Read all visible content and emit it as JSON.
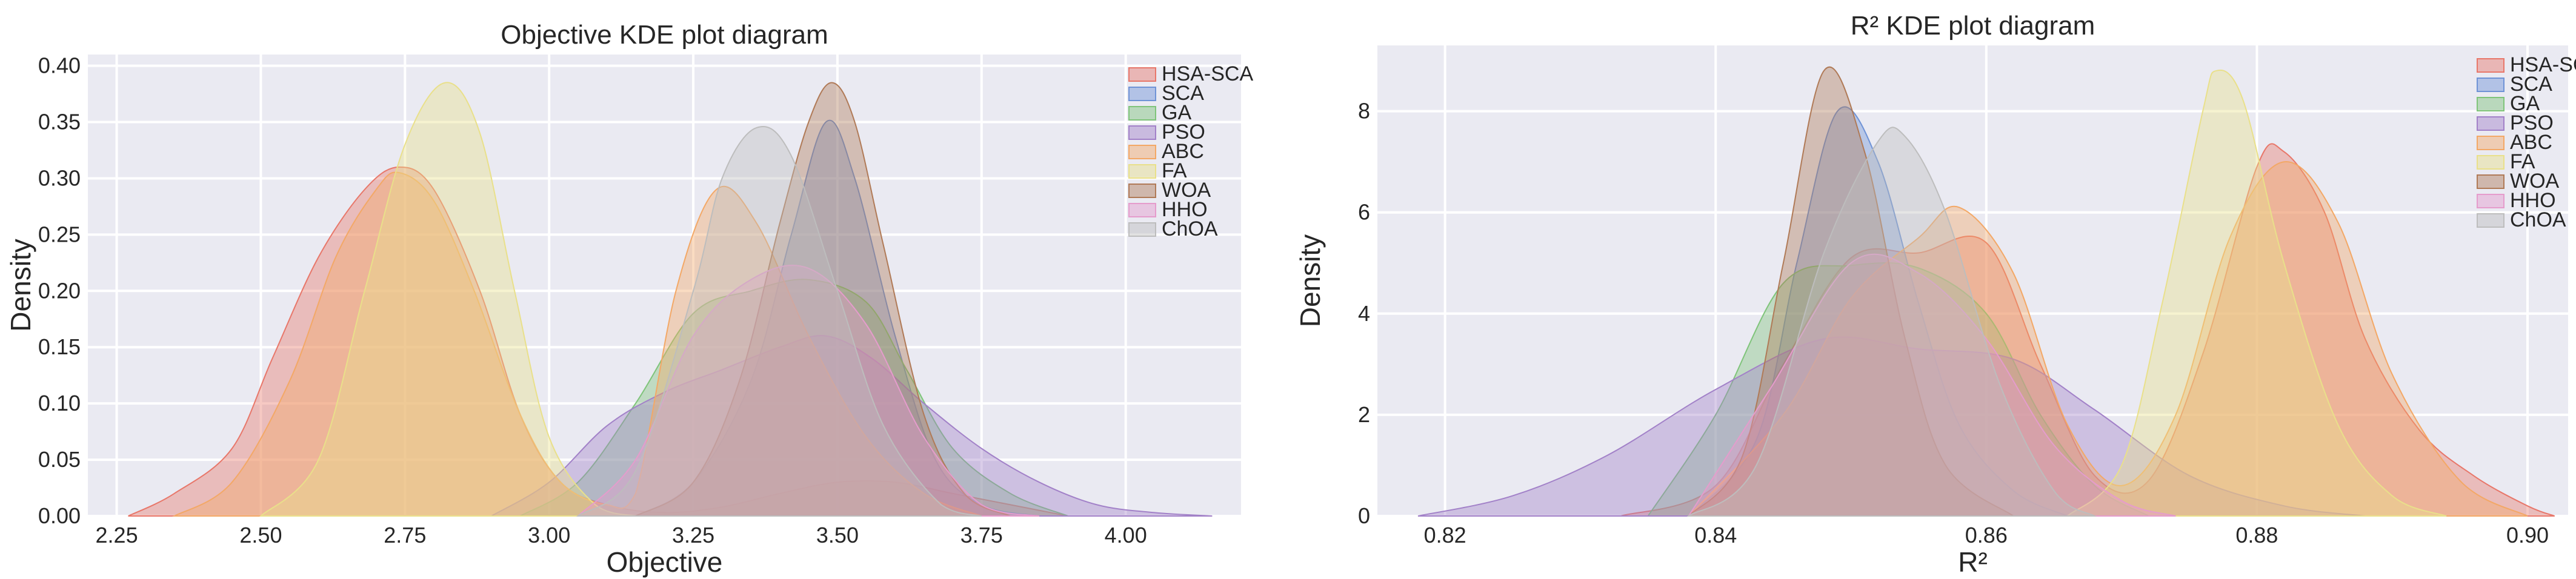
{
  "chart_data": [
    {
      "type": "area",
      "kind": "kde",
      "title": "Objective KDE plot diagram",
      "xlabel": "Objective",
      "ylabel": "Density",
      "xlim": [
        2.2,
        4.2
      ],
      "ylim": [
        0,
        0.41
      ],
      "xticks": [
        "2.25",
        "2.50",
        "2.75",
        "3.00",
        "3.25",
        "3.50",
        "3.75",
        "4.00"
      ],
      "xtick_values": [
        2.25,
        2.5,
        2.75,
        3.0,
        3.25,
        3.5,
        3.75,
        4.0
      ],
      "yticks": [
        "0.00",
        "0.05",
        "0.10",
        "0.15",
        "0.20",
        "0.25",
        "0.30",
        "0.35",
        "0.40"
      ],
      "ytick_values": [
        0,
        0.05,
        0.1,
        0.15,
        0.2,
        0.25,
        0.3,
        0.35,
        0.4
      ],
      "grid": true,
      "legend": "top-right",
      "series": [
        {
          "name": "HSA-SCA",
          "color": "#e8776a",
          "points": [
            [
              2.27,
              0
            ],
            [
              2.35,
              0.02
            ],
            [
              2.45,
              0.06
            ],
            [
              2.52,
              0.14
            ],
            [
              2.6,
              0.23
            ],
            [
              2.68,
              0.29
            ],
            [
              2.74,
              0.31
            ],
            [
              2.8,
              0.29
            ],
            [
              2.88,
              0.2
            ],
            [
              2.95,
              0.09
            ],
            [
              3.02,
              0.03
            ],
            [
              3.1,
              0.01
            ],
            [
              3.2,
              0.003
            ],
            [
              3.3,
              0.008
            ],
            [
              3.4,
              0.02
            ],
            [
              3.5,
              0.03
            ],
            [
              3.6,
              0.03
            ],
            [
              3.7,
              0.02
            ],
            [
              3.8,
              0.01
            ],
            [
              3.9,
              0
            ]
          ]
        },
        {
          "name": "SCA",
          "color": "#6f93d6",
          "points": [
            [
              3.15,
              0
            ],
            [
              3.25,
              0.03
            ],
            [
              3.35,
              0.12
            ],
            [
              3.42,
              0.25
            ],
            [
              3.48,
              0.35
            ],
            [
              3.53,
              0.3
            ],
            [
              3.6,
              0.16
            ],
            [
              3.67,
              0.05
            ],
            [
              3.75,
              0.01
            ],
            [
              3.85,
              0
            ]
          ]
        },
        {
          "name": "GA",
          "color": "#7fc47a",
          "points": [
            [
              2.95,
              0
            ],
            [
              3.05,
              0.03
            ],
            [
              3.15,
              0.1
            ],
            [
              3.25,
              0.18
            ],
            [
              3.35,
              0.2
            ],
            [
              3.45,
              0.21
            ],
            [
              3.55,
              0.19
            ],
            [
              3.62,
              0.13
            ],
            [
              3.7,
              0.06
            ],
            [
              3.8,
              0.02
            ],
            [
              3.9,
              0
            ]
          ]
        },
        {
          "name": "PSO",
          "color": "#a281c8",
          "points": [
            [
              2.9,
              0
            ],
            [
              3.0,
              0.03
            ],
            [
              3.1,
              0.08
            ],
            [
              3.2,
              0.11
            ],
            [
              3.3,
              0.13
            ],
            [
              3.4,
              0.15
            ],
            [
              3.48,
              0.16
            ],
            [
              3.56,
              0.14
            ],
            [
              3.65,
              0.1
            ],
            [
              3.75,
              0.06
            ],
            [
              3.85,
              0.03
            ],
            [
              3.95,
              0.01
            ],
            [
              4.05,
              0.003
            ],
            [
              4.15,
              0
            ]
          ]
        },
        {
          "name": "ABC",
          "color": "#f3a866",
          "points": [
            [
              2.35,
              0
            ],
            [
              2.45,
              0.03
            ],
            [
              2.55,
              0.12
            ],
            [
              2.63,
              0.23
            ],
            [
              2.7,
              0.29
            ],
            [
              2.74,
              0.305
            ],
            [
              2.8,
              0.28
            ],
            [
              2.87,
              0.2
            ],
            [
              2.95,
              0.09
            ],
            [
              3.02,
              0.03
            ],
            [
              3.1,
              0.01
            ],
            [
              3.15,
              0.02
            ],
            [
              3.22,
              0.2
            ],
            [
              3.29,
              0.29
            ],
            [
              3.36,
              0.26
            ],
            [
              3.45,
              0.16
            ],
            [
              3.55,
              0.07
            ],
            [
              3.65,
              0.02
            ],
            [
              3.75,
              0
            ]
          ]
        },
        {
          "name": "FA",
          "color": "#e9e08a",
          "points": [
            [
              2.5,
              0
            ],
            [
              2.6,
              0.05
            ],
            [
              2.68,
              0.2
            ],
            [
              2.75,
              0.33
            ],
            [
              2.82,
              0.385
            ],
            [
              2.88,
              0.34
            ],
            [
              2.94,
              0.2
            ],
            [
              3.0,
              0.07
            ],
            [
              3.08,
              0.01
            ],
            [
              3.15,
              0
            ]
          ]
        },
        {
          "name": "WOA",
          "color": "#b07a57",
          "points": [
            [
              3.15,
              0
            ],
            [
              3.25,
              0.03
            ],
            [
              3.33,
              0.12
            ],
            [
              3.4,
              0.26
            ],
            [
              3.45,
              0.35
            ],
            [
              3.49,
              0.385
            ],
            [
              3.53,
              0.35
            ],
            [
              3.58,
              0.24
            ],
            [
              3.65,
              0.09
            ],
            [
              3.72,
              0.02
            ],
            [
              3.8,
              0
            ]
          ]
        },
        {
          "name": "HHO",
          "color": "#e59ccc",
          "points": [
            [
              3.05,
              0
            ],
            [
              3.15,
              0.05
            ],
            [
              3.25,
              0.16
            ],
            [
              3.35,
              0.21
            ],
            [
              3.45,
              0.22
            ],
            [
              3.55,
              0.17
            ],
            [
              3.65,
              0.07
            ],
            [
              3.75,
              0.01
            ],
            [
              3.85,
              0
            ]
          ]
        },
        {
          "name": "ChOA",
          "color": "#bdbdbd",
          "points": [
            [
              3.05,
              0
            ],
            [
              3.15,
              0.04
            ],
            [
              3.25,
              0.2
            ],
            [
              3.3,
              0.3
            ],
            [
              3.36,
              0.345
            ],
            [
              3.42,
              0.32
            ],
            [
              3.5,
              0.2
            ],
            [
              3.58,
              0.08
            ],
            [
              3.68,
              0.01
            ],
            [
              3.75,
              0
            ]
          ]
        }
      ]
    },
    {
      "type": "area",
      "kind": "kde",
      "title": "R² KDE plot diagram",
      "xlabel": "R²",
      "ylabel": "Density",
      "xlim": [
        0.815,
        0.903
      ],
      "ylim": [
        0,
        9.3
      ],
      "xticks": [
        "0.82",
        "0.84",
        "0.86",
        "0.88",
        "0.90"
      ],
      "xtick_values": [
        0.82,
        0.84,
        0.86,
        0.88,
        0.9
      ],
      "yticks": [
        "0",
        "2",
        "4",
        "6",
        "8"
      ],
      "ytick_values": [
        0,
        2,
        4,
        6,
        8
      ],
      "grid": true,
      "legend": "top-right",
      "series": [
        {
          "name": "HSA-SCA",
          "color": "#e8776a",
          "points": [
            [
              0.833,
              0
            ],
            [
              0.84,
              0.6
            ],
            [
              0.845,
              3.0
            ],
            [
              0.85,
              5.1
            ],
            [
              0.855,
              5.2
            ],
            [
              0.86,
              5.4
            ],
            [
              0.864,
              3.0
            ],
            [
              0.868,
              0.8
            ],
            [
              0.872,
              0.7
            ],
            [
              0.876,
              3.2
            ],
            [
              0.88,
              6.9
            ],
            [
              0.882,
              7.2
            ],
            [
              0.885,
              6.0
            ],
            [
              0.888,
              3.5
            ],
            [
              0.892,
              1.7
            ],
            [
              0.896,
              0.8
            ],
            [
              0.9,
              0.2
            ],
            [
              0.902,
              0
            ]
          ]
        },
        {
          "name": "SCA",
          "color": "#6f93d6",
          "points": [
            [
              0.838,
              0
            ],
            [
              0.843,
              1.5
            ],
            [
              0.846,
              5.0
            ],
            [
              0.849,
              8.0
            ],
            [
              0.852,
              7.0
            ],
            [
              0.855,
              4.2
            ],
            [
              0.858,
              1.8
            ],
            [
              0.862,
              0.5
            ],
            [
              0.866,
              0
            ]
          ]
        },
        {
          "name": "GA",
          "color": "#7fc47a",
          "points": [
            [
              0.835,
              0
            ],
            [
              0.84,
              2.0
            ],
            [
              0.845,
              4.6
            ],
            [
              0.85,
              4.95
            ],
            [
              0.855,
              4.9
            ],
            [
              0.86,
              4.0
            ],
            [
              0.864,
              2.0
            ],
            [
              0.868,
              0.6
            ],
            [
              0.872,
              0
            ]
          ]
        },
        {
          "name": "PSO",
          "color": "#a281c8",
          "points": [
            [
              0.818,
              0
            ],
            [
              0.825,
              0.4
            ],
            [
              0.832,
              1.2
            ],
            [
              0.84,
              2.5
            ],
            [
              0.848,
              3.5
            ],
            [
              0.855,
              3.3
            ],
            [
              0.862,
              3.1
            ],
            [
              0.868,
              2.1
            ],
            [
              0.875,
              0.8
            ],
            [
              0.882,
              0.2
            ],
            [
              0.888,
              0
            ]
          ]
        },
        {
          "name": "ABC",
          "color": "#f3a866",
          "points": [
            [
              0.838,
              0
            ],
            [
              0.845,
              2.0
            ],
            [
              0.85,
              4.3
            ],
            [
              0.855,
              5.5
            ],
            [
              0.858,
              6.1
            ],
            [
              0.862,
              4.8
            ],
            [
              0.866,
              1.8
            ],
            [
              0.87,
              0.6
            ],
            [
              0.874,
              2.0
            ],
            [
              0.878,
              5.5
            ],
            [
              0.882,
              7.0
            ],
            [
              0.886,
              5.8
            ],
            [
              0.89,
              2.8
            ],
            [
              0.895,
              0.7
            ],
            [
              0.9,
              0
            ]
          ]
        },
        {
          "name": "FA",
          "color": "#e9e08a",
          "points": [
            [
              0.866,
              0
            ],
            [
              0.87,
              1.0
            ],
            [
              0.873,
              4.2
            ],
            [
              0.876,
              8.0
            ],
            [
              0.877,
              8.8
            ],
            [
              0.879,
              8.2
            ],
            [
              0.882,
              5.0
            ],
            [
              0.886,
              1.8
            ],
            [
              0.89,
              0.4
            ],
            [
              0.894,
              0
            ]
          ]
        },
        {
          "name": "WOA",
          "color": "#b07a57",
          "points": [
            [
              0.838,
              0
            ],
            [
              0.842,
              1.2
            ],
            [
              0.845,
              5.0
            ],
            [
              0.848,
              8.8
            ],
            [
              0.851,
              7.2
            ],
            [
              0.854,
              3.5
            ],
            [
              0.857,
              1.0
            ],
            [
              0.862,
              0
            ]
          ]
        },
        {
          "name": "HHO",
          "color": "#e59ccc",
          "points": [
            [
              0.838,
              0
            ],
            [
              0.844,
              2.5
            ],
            [
              0.85,
              5.0
            ],
            [
              0.855,
              4.8
            ],
            [
              0.86,
              3.5
            ],
            [
              0.865,
              1.4
            ],
            [
              0.87,
              0.3
            ],
            [
              0.874,
              0
            ]
          ]
        },
        {
          "name": "ChOA",
          "color": "#bdbdbd",
          "points": [
            [
              0.838,
              0
            ],
            [
              0.843,
              1.0
            ],
            [
              0.848,
              5.2
            ],
            [
              0.852,
              7.4
            ],
            [
              0.854,
              7.5
            ],
            [
              0.857,
              6.0
            ],
            [
              0.861,
              2.6
            ],
            [
              0.865,
              0.5
            ],
            [
              0.868,
              0
            ]
          ]
        }
      ]
    }
  ]
}
